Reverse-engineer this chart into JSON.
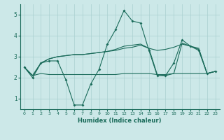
{
  "xlabel": "Humidex (Indice chaleur)",
  "x": [
    0,
    1,
    2,
    3,
    4,
    5,
    6,
    7,
    8,
    9,
    10,
    11,
    12,
    13,
    14,
    15,
    16,
    17,
    18,
    19,
    20,
    21,
    22,
    23
  ],
  "series1": [
    2.5,
    2.0,
    2.7,
    2.8,
    2.8,
    1.9,
    0.7,
    0.7,
    1.7,
    2.4,
    3.6,
    4.3,
    5.2,
    4.7,
    4.6,
    3.3,
    2.1,
    2.1,
    2.7,
    3.8,
    3.5,
    3.3,
    2.2,
    2.3
  ],
  "series2": [
    2.5,
    2.1,
    2.7,
    2.9,
    3.0,
    3.05,
    3.1,
    3.1,
    3.15,
    3.2,
    3.25,
    3.3,
    3.4,
    3.45,
    3.55,
    3.4,
    3.3,
    3.35,
    3.45,
    3.6,
    3.5,
    3.4,
    2.2,
    2.3
  ],
  "series3": [
    2.5,
    2.1,
    2.7,
    2.9,
    3.0,
    3.05,
    3.1,
    3.1,
    3.15,
    3.2,
    3.25,
    3.35,
    3.5,
    3.55,
    3.6,
    3.4,
    2.15,
    2.1,
    2.2,
    3.65,
    3.5,
    3.35,
    2.2,
    2.3
  ],
  "series4": [
    2.5,
    2.1,
    2.2,
    2.15,
    2.15,
    2.15,
    2.15,
    2.15,
    2.15,
    2.15,
    2.15,
    2.15,
    2.2,
    2.2,
    2.2,
    2.2,
    2.15,
    2.15,
    2.2,
    2.2,
    2.2,
    2.2,
    2.2,
    2.3
  ],
  "line_color": "#1a6b5a",
  "bg_color": "#cce8e8",
  "grid_color": "#aad0d0",
  "ylim": [
    0.5,
    5.5
  ],
  "yticks": [
    1,
    2,
    3,
    4,
    5
  ],
  "xlim": [
    -0.5,
    23.5
  ]
}
